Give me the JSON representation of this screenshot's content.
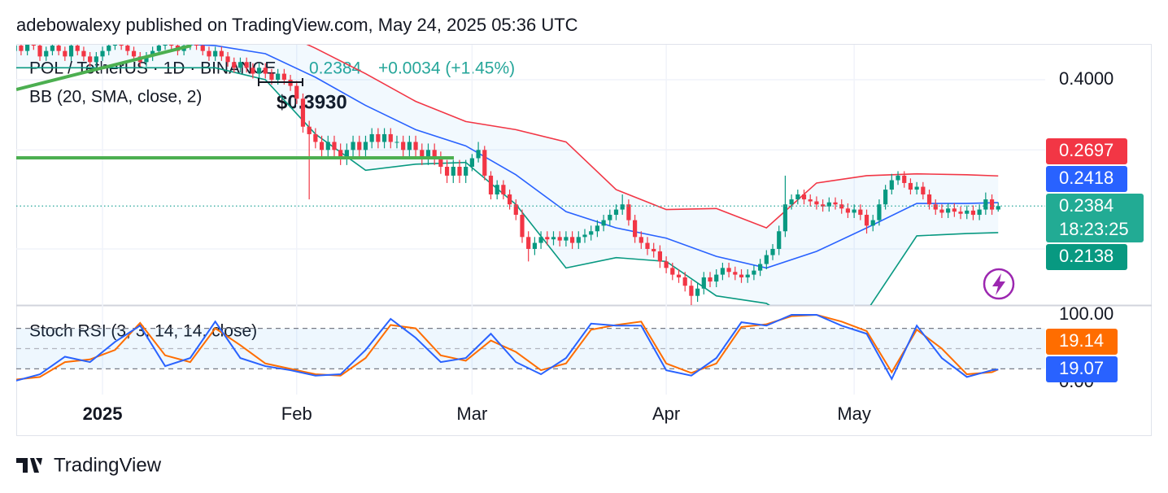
{
  "header": "adebowalexy published on TradingView.com, May 24, 2025 05:36 UTC",
  "footer": "TradingView",
  "chart_data": {
    "type": "candlestick",
    "title": "POL / TetherUS · 1D · BINANCE",
    "change": "+0.0034 (+1.45%)",
    "countdown": "18:23:25",
    "annotation": "$0.3930",
    "log_scale": true,
    "grid": true,
    "up_color": "#089981",
    "down_color": "#f23645",
    "ylim": [
      0.1589,
      0.4616
    ],
    "yticks": [
      {
        "value": 0.4,
        "label": "0.4000"
      }
    ],
    "ygrid": [
      0.3,
      0.2
    ],
    "xlim": [
      0.23,
      164.5
    ],
    "xticks": [
      {
        "value": 14,
        "label": "2025"
      },
      {
        "value": 45,
        "label": "Feb"
      },
      {
        "value": 73,
        "label": "Mar"
      },
      {
        "value": 104,
        "label": "Apr"
      },
      {
        "value": 134,
        "label": "May"
      }
    ],
    "ohlc": [
      [
        0.45,
        0.468,
        0.442,
        0.46
      ],
      [
        0.46,
        0.468,
        0.442,
        0.45
      ],
      [
        0.45,
        0.478,
        0.442,
        0.47
      ],
      [
        0.47,
        0.478,
        0.452,
        0.46
      ],
      [
        0.46,
        0.468,
        0.432,
        0.44
      ],
      [
        0.44,
        0.458,
        0.432,
        0.45
      ],
      [
        0.45,
        0.468,
        0.442,
        0.46
      ],
      [
        0.46,
        0.468,
        0.442,
        0.45
      ],
      [
        0.45,
        0.458,
        0.432,
        0.44
      ],
      [
        0.44,
        0.468,
        0.432,
        0.46
      ],
      [
        0.46,
        0.468,
        0.442,
        0.45
      ],
      [
        0.45,
        0.458,
        0.432,
        0.44
      ],
      [
        0.44,
        0.448,
        0.422,
        0.43
      ],
      [
        0.43,
        0.448,
        0.422,
        0.44
      ],
      [
        0.44,
        0.458,
        0.432,
        0.45
      ],
      [
        0.45,
        0.468,
        0.442,
        0.46
      ],
      [
        0.46,
        0.478,
        0.452,
        0.47
      ],
      [
        0.47,
        0.478,
        0.452,
        0.46
      ],
      [
        0.46,
        0.468,
        0.442,
        0.45
      ],
      [
        0.45,
        0.458,
        0.432,
        0.44
      ],
      [
        0.44,
        0.448,
        0.422,
        0.43
      ],
      [
        0.43,
        0.448,
        0.422,
        0.44
      ],
      [
        0.44,
        0.458,
        0.432,
        0.45
      ],
      [
        0.45,
        0.468,
        0.442,
        0.46
      ],
      [
        0.46,
        0.478,
        0.452,
        0.47
      ],
      [
        0.47,
        0.478,
        0.452,
        0.46
      ],
      [
        0.46,
        0.468,
        0.442,
        0.45
      ],
      [
        0.45,
        0.468,
        0.442,
        0.46
      ],
      [
        0.46,
        0.478,
        0.452,
        0.47
      ],
      [
        0.47,
        0.478,
        0.452,
        0.46
      ],
      [
        0.46,
        0.468,
        0.442,
        0.45
      ],
      [
        0.45,
        0.458,
        0.432,
        0.44
      ],
      [
        0.44,
        0.458,
        0.432,
        0.45
      ],
      [
        0.45,
        0.458,
        0.432,
        0.44
      ],
      [
        0.44,
        0.448,
        0.422,
        0.43
      ],
      [
        0.43,
        0.438,
        0.412,
        0.42
      ],
      [
        0.42,
        0.438,
        0.412,
        0.43
      ],
      [
        0.43,
        0.438,
        0.412,
        0.42
      ],
      [
        0.42,
        0.428,
        0.402,
        0.41
      ],
      [
        0.41,
        0.428,
        0.402,
        0.42
      ],
      [
        0.42,
        0.428,
        0.402,
        0.41
      ],
      [
        0.41,
        0.418,
        0.392,
        0.4
      ],
      [
        0.4,
        0.418,
        0.392,
        0.41
      ],
      [
        0.41,
        0.418,
        0.392,
        0.4
      ],
      [
        0.4,
        0.408,
        0.382,
        0.39
      ],
      [
        0.39,
        0.398,
        0.362,
        0.37
      ],
      [
        0.37,
        0.378,
        0.322,
        0.33
      ],
      [
        0.33,
        0.338,
        0.245,
        0.32
      ],
      [
        0.32,
        0.328,
        0.302,
        0.31
      ],
      [
        0.31,
        0.318,
        0.292,
        0.3
      ],
      [
        0.3,
        0.318,
        0.292,
        0.31
      ],
      [
        0.31,
        0.318,
        0.292,
        0.3
      ],
      [
        0.3,
        0.308,
        0.282,
        0.29
      ],
      [
        0.29,
        0.308,
        0.282,
        0.3
      ],
      [
        0.3,
        0.318,
        0.292,
        0.31
      ],
      [
        0.31,
        0.318,
        0.292,
        0.3
      ],
      [
        0.3,
        0.318,
        0.292,
        0.31
      ],
      [
        0.31,
        0.328,
        0.302,
        0.32
      ],
      [
        0.32,
        0.328,
        0.302,
        0.31
      ],
      [
        0.31,
        0.328,
        0.302,
        0.32
      ],
      [
        0.32,
        0.328,
        0.302,
        0.31
      ],
      [
        0.31,
        0.318,
        0.302,
        0.31
      ],
      [
        0.31,
        0.318,
        0.292,
        0.3
      ],
      [
        0.3,
        0.318,
        0.292,
        0.31
      ],
      [
        0.31,
        0.318,
        0.292,
        0.3
      ],
      [
        0.3,
        0.308,
        0.282,
        0.29
      ],
      [
        0.29,
        0.308,
        0.282,
        0.3
      ],
      [
        0.3,
        0.308,
        0.282,
        0.29
      ],
      [
        0.29,
        0.298,
        0.272,
        0.28
      ],
      [
        0.28,
        0.288,
        0.262,
        0.27
      ],
      [
        0.27,
        0.288,
        0.262,
        0.28
      ],
      [
        0.28,
        0.288,
        0.262,
        0.27
      ],
      [
        0.27,
        0.288,
        0.262,
        0.28
      ],
      [
        0.28,
        0.295,
        0.275,
        0.29
      ],
      [
        0.29,
        0.31,
        0.285,
        0.3
      ],
      [
        0.3,
        0.305,
        0.265,
        0.27
      ],
      [
        0.27,
        0.275,
        0.245,
        0.25
      ],
      [
        0.25,
        0.265,
        0.245,
        0.26
      ],
      [
        0.26,
        0.265,
        0.245,
        0.25
      ],
      [
        0.25,
        0.255,
        0.235,
        0.24
      ],
      [
        0.24,
        0.245,
        0.225,
        0.23
      ],
      [
        0.23,
        0.235,
        0.205,
        0.21
      ],
      [
        0.21,
        0.215,
        0.19,
        0.2
      ],
      [
        0.2,
        0.21,
        0.195,
        0.205
      ],
      [
        0.205,
        0.215,
        0.2,
        0.21
      ],
      [
        0.21,
        0.215,
        0.203,
        0.208
      ],
      [
        0.208,
        0.215,
        0.203,
        0.21
      ],
      [
        0.21,
        0.215,
        0.202,
        0.207
      ],
      [
        0.207,
        0.215,
        0.202,
        0.21
      ],
      [
        0.21,
        0.215,
        0.2,
        0.205
      ],
      [
        0.205,
        0.215,
        0.2,
        0.21
      ],
      [
        0.21,
        0.217,
        0.205,
        0.212
      ],
      [
        0.212,
        0.22,
        0.207,
        0.215
      ],
      [
        0.215,
        0.225,
        0.21,
        0.22
      ],
      [
        0.22,
        0.23,
        0.215,
        0.225
      ],
      [
        0.225,
        0.235,
        0.22,
        0.23
      ],
      [
        0.23,
        0.24,
        0.225,
        0.235
      ],
      [
        0.235,
        0.25,
        0.23,
        0.24
      ],
      [
        0.24,
        0.245,
        0.22,
        0.225
      ],
      [
        0.225,
        0.23,
        0.205,
        0.21
      ],
      [
        0.21,
        0.215,
        0.2,
        0.205
      ],
      [
        0.205,
        0.21,
        0.195,
        0.2
      ],
      [
        0.2,
        0.205,
        0.193,
        0.198
      ],
      [
        0.198,
        0.203,
        0.185,
        0.19
      ],
      [
        0.19,
        0.194,
        0.181,
        0.185
      ],
      [
        0.185,
        0.189,
        0.176,
        0.18
      ],
      [
        0.18,
        0.184,
        0.174,
        0.178
      ],
      [
        0.178,
        0.182,
        0.168,
        0.172
      ],
      [
        0.172,
        0.176,
        0.158,
        0.165
      ],
      [
        0.165,
        0.174,
        0.161,
        0.17
      ],
      [
        0.17,
        0.182,
        0.166,
        0.178
      ],
      [
        0.178,
        0.182,
        0.171,
        0.175
      ],
      [
        0.175,
        0.184,
        0.171,
        0.18
      ],
      [
        0.18,
        0.189,
        0.176,
        0.185
      ],
      [
        0.185,
        0.189,
        0.178,
        0.182
      ],
      [
        0.182,
        0.186,
        0.176,
        0.18
      ],
      [
        0.18,
        0.184,
        0.174,
        0.178
      ],
      [
        0.178,
        0.184,
        0.174,
        0.18
      ],
      [
        0.18,
        0.187,
        0.176,
        0.183
      ],
      [
        0.183,
        0.192,
        0.179,
        0.188
      ],
      [
        0.188,
        0.199,
        0.184,
        0.195
      ],
      [
        0.195,
        0.204,
        0.191,
        0.2
      ],
      [
        0.2,
        0.22,
        0.195,
        0.215
      ],
      [
        0.215,
        0.27,
        0.21,
        0.24
      ],
      [
        0.24,
        0.25,
        0.235,
        0.245
      ],
      [
        0.245,
        0.255,
        0.24,
        0.25
      ],
      [
        0.25,
        0.255,
        0.24,
        0.245
      ],
      [
        0.245,
        0.25,
        0.238,
        0.243
      ],
      [
        0.243,
        0.248,
        0.235,
        0.24
      ],
      [
        0.24,
        0.245,
        0.233,
        0.238
      ],
      [
        0.238,
        0.247,
        0.233,
        0.242
      ],
      [
        0.242,
        0.247,
        0.235,
        0.24
      ],
      [
        0.24,
        0.245,
        0.231,
        0.236
      ],
      [
        0.236,
        0.241,
        0.227,
        0.232
      ],
      [
        0.232,
        0.24,
        0.227,
        0.235
      ],
      [
        0.235,
        0.24,
        0.225,
        0.23
      ],
      [
        0.23,
        0.235,
        0.213,
        0.22
      ],
      [
        0.22,
        0.23,
        0.215,
        0.225
      ],
      [
        0.225,
        0.245,
        0.22,
        0.24
      ],
      [
        0.24,
        0.26,
        0.235,
        0.255
      ],
      [
        0.255,
        0.272,
        0.25,
        0.265
      ],
      [
        0.265,
        0.275,
        0.26,
        0.27
      ],
      [
        0.27,
        0.275,
        0.257,
        0.262
      ],
      [
        0.262,
        0.267,
        0.25,
        0.255
      ],
      [
        0.255,
        0.263,
        0.25,
        0.258
      ],
      [
        0.258,
        0.263,
        0.245,
        0.25
      ],
      [
        0.25,
        0.255,
        0.235,
        0.24
      ],
      [
        0.24,
        0.245,
        0.23,
        0.235
      ],
      [
        0.235,
        0.24,
        0.227,
        0.232
      ],
      [
        0.232,
        0.241,
        0.227,
        0.236
      ],
      [
        0.236,
        0.241,
        0.228,
        0.233
      ],
      [
        0.233,
        0.238,
        0.226,
        0.231
      ],
      [
        0.231,
        0.239,
        0.226,
        0.234
      ],
      [
        0.234,
        0.239,
        0.225,
        0.23
      ],
      [
        0.23,
        0.24,
        0.225,
        0.235
      ],
      [
        0.235,
        0.252,
        0.23,
        0.245
      ],
      [
        0.245,
        0.25,
        0.23,
        0.235
      ],
      [
        0.235,
        0.242,
        0.233,
        0.2384
      ]
    ],
    "bb": {
      "label": "BB (20, SMA, close, 2)",
      "fill": "#2196f3",
      "x": [
        0,
        8,
        16,
        24,
        32,
        40,
        48,
        56,
        64,
        72,
        80,
        88,
        96,
        104,
        112,
        120,
        128,
        136,
        144,
        152,
        157
      ],
      "upper": {
        "color": "#f23645",
        "values": [
          0.56,
          0.55,
          0.53,
          0.52,
          0.51,
          0.5,
          0.455,
          0.41,
          0.366,
          0.337,
          0.326,
          0.31,
          0.255,
          0.235,
          0.236,
          0.218,
          0.262,
          0.27,
          0.272,
          0.271,
          0.2697
        ]
      },
      "basis": {
        "color": "#2962ff",
        "values": [
          0.49,
          0.48,
          0.47,
          0.465,
          0.46,
          0.445,
          0.404,
          0.36,
          0.326,
          0.305,
          0.271,
          0.233,
          0.218,
          0.209,
          0.194,
          0.185,
          0.198,
          0.218,
          0.241,
          0.241,
          0.2418
        ]
      },
      "lower": {
        "color": "#089981",
        "values": [
          0.42,
          0.42,
          0.42,
          0.42,
          0.42,
          0.4,
          0.32,
          0.276,
          0.283,
          0.285,
          0.24,
          0.185,
          0.193,
          0.19,
          0.165,
          0.16,
          0.14,
          0.155,
          0.211,
          0.213,
          0.2138
        ]
      }
    },
    "stoch": {
      "label": "Stoch RSI (3, 3, 14, 14, close)",
      "ylim": [
        0,
        100
      ],
      "yticks": [
        {
          "value": 100,
          "label": "100.00"
        },
        {
          "value": 0,
          "label": "0.00"
        }
      ],
      "levels": [
        80,
        50,
        20
      ],
      "band_color": "#2196f3",
      "x": [
        0,
        4,
        8,
        12,
        16,
        20,
        24,
        28,
        32,
        36,
        40,
        44,
        48,
        52,
        56,
        60,
        64,
        68,
        72,
        76,
        80,
        84,
        88,
        92,
        96,
        100,
        104,
        108,
        112,
        116,
        120,
        124,
        128,
        132,
        136,
        140,
        144,
        148,
        152,
        156,
        157
      ],
      "k": {
        "color": "#2962ff",
        "values": [
          2,
          12,
          38,
          30,
          60,
          84,
          24,
          36,
          90,
          36,
          24,
          18,
          10,
          12,
          48,
          94,
          66,
          30,
          36,
          72,
          30,
          12,
          36,
          87,
          84,
          84,
          18,
          10,
          36,
          89,
          84,
          100,
          100,
          84,
          72,
          5,
          84,
          36,
          8,
          18,
          19.07
        ]
      },
      "d": {
        "color": "#ff6d00",
        "values": [
          4,
          8,
          30,
          34,
          48,
          88,
          40,
          30,
          80,
          55,
          28,
          20,
          12,
          10,
          36,
          85,
          80,
          40,
          32,
          62,
          45,
          18,
          28,
          78,
          85,
          90,
          28,
          14,
          28,
          82,
          86,
          98,
          100,
          90,
          76,
          15,
          78,
          50,
          12,
          15,
          19.14
        ]
      }
    }
  }
}
